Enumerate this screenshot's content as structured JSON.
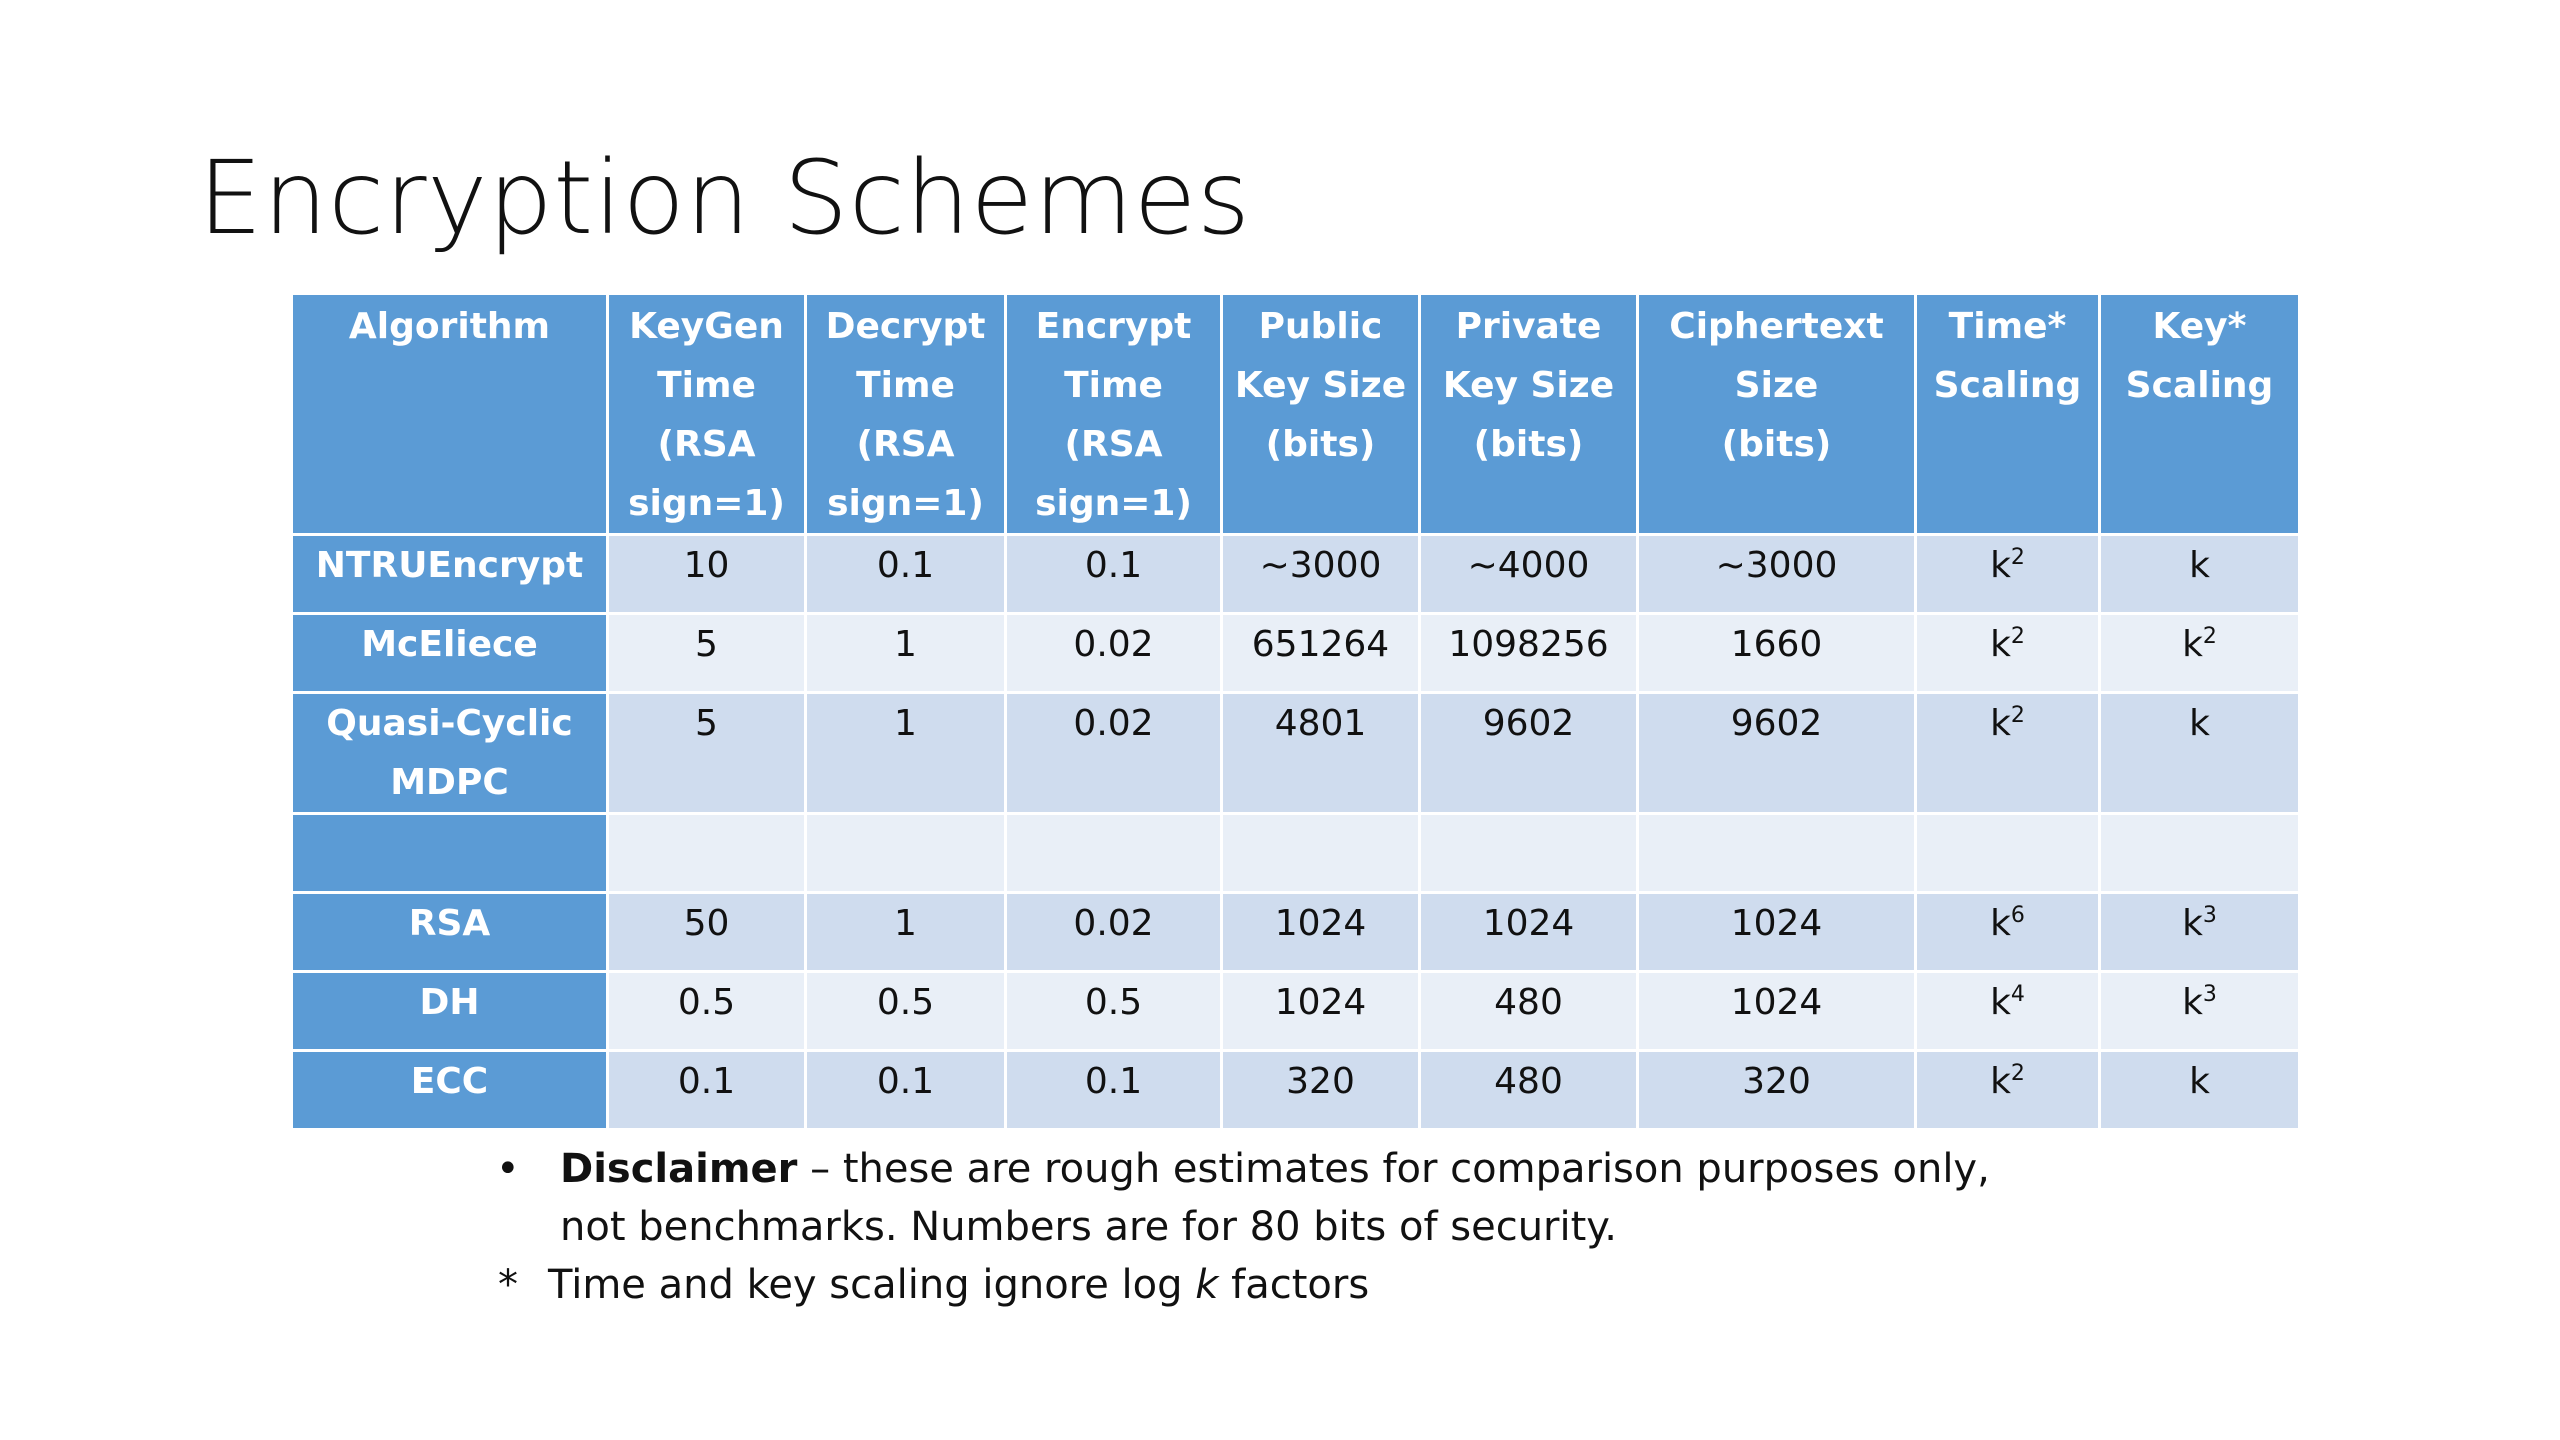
{
  "title": "Encryption Schemes",
  "table": {
    "headers": [
      [
        "Algorithm"
      ],
      [
        "KeyGen",
        "Time",
        "(RSA",
        "sign=1)"
      ],
      [
        "Decrypt",
        "Time",
        "(RSA",
        "sign=1)"
      ],
      [
        "Encrypt",
        "Time",
        "(RSA",
        "sign=1)"
      ],
      [
        "Public",
        "Key Size",
        "(bits)"
      ],
      [
        "Private",
        "Key Size",
        "(bits)"
      ],
      [
        "Ciphertext",
        "Size",
        "(bits)"
      ],
      [
        "Time*",
        "Scaling"
      ],
      [
        "Key*",
        "Scaling"
      ]
    ],
    "rows": [
      {
        "algorithm": [
          "NTRUEncrypt"
        ],
        "keygen": "10",
        "decrypt": "0.1",
        "encrypt": "0.1",
        "public_key": "~3000",
        "private_key": "~4000",
        "ciphertext": "~3000",
        "time_base": "k",
        "time_exp": "2",
        "key_base": "k",
        "key_exp": ""
      },
      {
        "algorithm": [
          "McEliece"
        ],
        "keygen": "5",
        "decrypt": "1",
        "encrypt": "0.02",
        "public_key": "651264",
        "private_key": "1098256",
        "ciphertext": "1660",
        "time_base": "k",
        "time_exp": "2",
        "key_base": "k",
        "key_exp": "2"
      },
      {
        "algorithm": [
          "Quasi-Cyclic",
          "MDPC"
        ],
        "keygen": "5",
        "decrypt": "1",
        "encrypt": "0.02",
        "public_key": "4801",
        "private_key": "9602",
        "ciphertext": "9602",
        "time_base": "k",
        "time_exp": "2",
        "key_base": "k",
        "key_exp": ""
      },
      {
        "algorithm": [
          ""
        ],
        "keygen": "",
        "decrypt": "",
        "encrypt": "",
        "public_key": "",
        "private_key": "",
        "ciphertext": "",
        "time_base": "",
        "time_exp": "",
        "key_base": "",
        "key_exp": ""
      },
      {
        "algorithm": [
          "RSA"
        ],
        "keygen": "50",
        "decrypt": "1",
        "encrypt": "0.02",
        "public_key": "1024",
        "private_key": "1024",
        "ciphertext": "1024",
        "time_base": "k",
        "time_exp": "6",
        "key_base": "k",
        "key_exp": "3"
      },
      {
        "algorithm": [
          "DH"
        ],
        "keygen": "0.5",
        "decrypt": "0.5",
        "encrypt": "0.5",
        "public_key": "1024",
        "private_key": "480",
        "ciphertext": "1024",
        "time_base": "k",
        "time_exp": "4",
        "key_base": "k",
        "key_exp": "3"
      },
      {
        "algorithm": [
          "ECC"
        ],
        "keygen": "0.1",
        "decrypt": "0.1",
        "encrypt": "0.1",
        "public_key": "320",
        "private_key": "480",
        "ciphertext": "320",
        "time_base": "k",
        "time_exp": "2",
        "key_base": "k",
        "key_exp": ""
      }
    ]
  },
  "notes": {
    "bullet_marker": "•",
    "disclaimer_label": "Disclaimer",
    "disclaimer_text": " – these are rough estimates for comparison purposes only, not benchmarks.  Numbers are for 80 bits of security.",
    "star_marker": "*",
    "star_text_before": "Time and key scaling ignore log ",
    "star_text_italic": "k",
    "star_text_after": " factors"
  }
}
